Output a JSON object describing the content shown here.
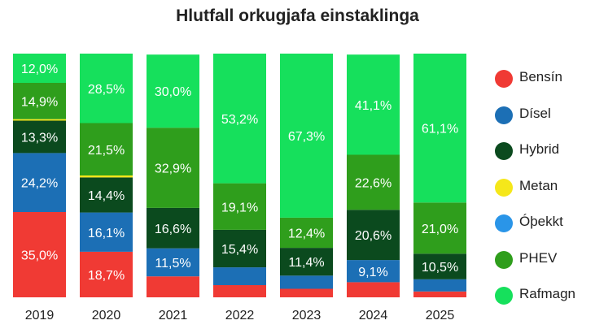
{
  "chart_data": {
    "type": "bar",
    "stacked": true,
    "title": "Hlutfall orkugjafa einstaklinga",
    "xlabel": "",
    "ylabel": "",
    "ylim": [
      0,
      100
    ],
    "grid": false,
    "legend_position": "right",
    "categories": [
      "2019",
      "2020",
      "2021",
      "2022",
      "2023",
      "2024",
      "2025"
    ],
    "series": [
      {
        "name": "Bensín",
        "color": "#f03a34",
        "values": [
          35.0,
          18.7,
          8.6,
          5.0,
          3.5,
          6.2,
          2.4
        ],
        "labels": [
          "35,0%",
          "18,7%",
          "",
          "",
          "",
          "",
          ""
        ]
      },
      {
        "name": "Dísel",
        "color": "#1c6fb5",
        "values": [
          24.2,
          16.1,
          11.5,
          7.3,
          5.4,
          9.1,
          5.0
        ],
        "labels": [
          "24,2%",
          "16,1%",
          "11,5%",
          "",
          "",
          "9,1%",
          ""
        ]
      },
      {
        "name": "Hybrid",
        "color": "#0b4a1e",
        "values": [
          13.3,
          14.4,
          16.6,
          15.4,
          11.4,
          20.6,
          10.5
        ],
        "labels": [
          "13,3%",
          "14,4%",
          "16,6%",
          "15,4%",
          "11,4%",
          "20,6%",
          "10,5%"
        ]
      },
      {
        "name": "Metan",
        "color": "#f5e71a",
        "values": [
          0.6,
          0.8,
          0,
          0,
          0,
          0,
          0
        ],
        "labels": [
          "",
          "",
          "",
          "",
          "",
          "",
          ""
        ]
      },
      {
        "name": "Óþekkt",
        "color": "#2a95e8",
        "values": [
          0,
          0,
          0,
          0,
          0,
          0,
          0
        ],
        "labels": [
          "",
          "",
          "",
          "",
          "",
          "",
          ""
        ]
      },
      {
        "name": "PHEV",
        "color": "#2f9e1c",
        "values": [
          14.9,
          21.5,
          32.9,
          19.1,
          12.4,
          22.6,
          21.0
        ],
        "labels": [
          "14,9%",
          "21,5%",
          "32,9%",
          "19,1%",
          "12,4%",
          "22,6%",
          "21,0%"
        ]
      },
      {
        "name": "Rafmagn",
        "color": "#16e05c",
        "values": [
          12.0,
          28.5,
          30.0,
          53.2,
          67.3,
          41.1,
          61.1
        ],
        "labels": [
          "12,0%",
          "28,5%",
          "30,0%",
          "53,2%",
          "67,3%",
          "41,1%",
          "61,1%"
        ]
      }
    ]
  }
}
